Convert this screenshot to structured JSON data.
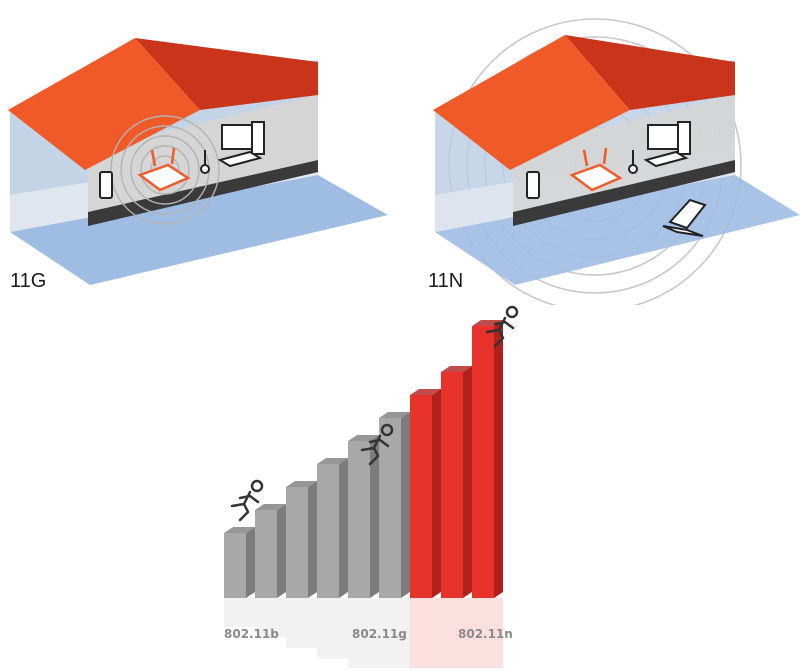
{
  "houses": [
    {
      "label": "11G",
      "coverage": "small",
      "colors": {
        "roof": "#f05a28",
        "roof_side": "#c9351a",
        "wall": "#b9cde3",
        "floor": "#9fbde3"
      }
    },
    {
      "label": "11N",
      "coverage": "large",
      "colors": {
        "roof": "#f05a28",
        "roof_side": "#c9351a",
        "wall": "#b9cde3",
        "floor": "#9fbde3"
      }
    }
  ],
  "speed_chart": {
    "labels": [
      "802.11b",
      "802.11g",
      "802.11n"
    ],
    "bar_levels": [
      1,
      2,
      3,
      4,
      5,
      6,
      7,
      8,
      10
    ],
    "bar_groups": [
      "gray",
      "gray",
      "gray",
      "gray",
      "gray",
      "gray",
      "red",
      "red",
      "red"
    ],
    "colors": {
      "gray": "#a8a8a8",
      "gray_side": "#7c7c7c",
      "red": "#e8322c",
      "red_side": "#b0211c"
    }
  }
}
